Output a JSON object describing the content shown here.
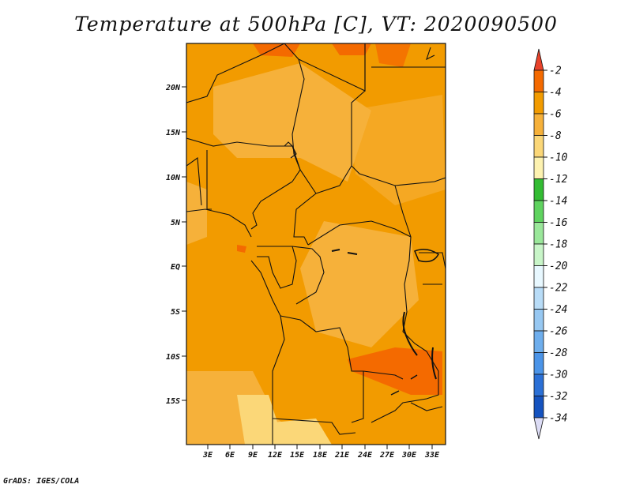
{
  "title": "Temperature at 500hPa [C], VT: 2020090500",
  "credit": "GrADS: IGES/COLA",
  "map": {
    "lat_labels": [
      "20N",
      "15N",
      "10N",
      "5N",
      "EQ",
      "5S",
      "10S",
      "15S"
    ],
    "lon_labels": [
      "3E",
      "6E",
      "9E",
      "12E",
      "15E",
      "18E",
      "21E",
      "24E",
      "27E",
      "30E",
      "33E"
    ]
  },
  "colorbar": {
    "labels": [
      "-2",
      "-4",
      "-6",
      "-8",
      "-10",
      "-12",
      "-14",
      "-16",
      "-18",
      "-20",
      "-22",
      "-24",
      "-26",
      "-28",
      "-30",
      "-32",
      "-34"
    ],
    "colors": {
      "top_arrow": "#e8422a",
      "c1": "#f46a00",
      "c2": "#f29b00",
      "c3": "#f6b13a",
      "c4": "#fbd778",
      "c5": "#fdf2b0",
      "c6": "#33bc33",
      "c7": "#5fd35f",
      "c8": "#9ae79a",
      "c9": "#c8f5c8",
      "c10": "#e8f8ff",
      "c11": "#b8dcf7",
      "c12": "#97c8f2",
      "c13": "#6eaeed",
      "c14": "#4b94e8",
      "c15": "#2b70d6",
      "c16": "#1553bf",
      "c17": "#0a3b9e",
      "c18": "#0d1a70",
      "bottom_arrow": "#dcdcf5"
    }
  }
}
